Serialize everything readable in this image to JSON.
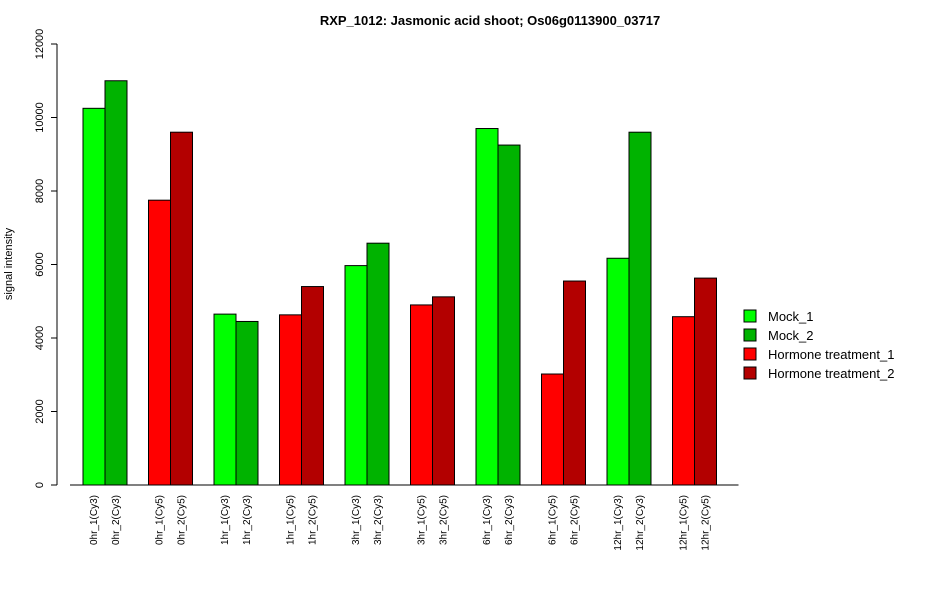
{
  "chart_data": {
    "type": "bar",
    "title": "RXP_1012: Jasmonic acid shoot; Os06g0113900_03717",
    "xlabel": "",
    "ylabel": "signal intensity",
    "ylim": [
      0,
      12000
    ],
    "yticks": [
      0,
      2000,
      4000,
      6000,
      8000,
      10000,
      12000
    ],
    "grid": false,
    "legend_position": "right",
    "legend": [
      {
        "name": "Mock_1",
        "color": "#00ff00"
      },
      {
        "name": "Mock_2",
        "color": "#00b300"
      },
      {
        "name": "Hormone treatment_1",
        "color": "#ff0000"
      },
      {
        "name": "Hormone treatment_2",
        "color": "#b30000"
      }
    ],
    "bars": [
      {
        "label": "0hr_1(Cy3)",
        "value": 10250,
        "color": "#00ff00"
      },
      {
        "label": "0hr_2(Cy3)",
        "value": 11000,
        "color": "#00b300"
      },
      {
        "label": "0hr_1(Cy5)",
        "value": 7750,
        "color": "#ff0000"
      },
      {
        "label": "0hr_2(Cy5)",
        "value": 9600,
        "color": "#b30000"
      },
      {
        "label": "1hr_1(Cy3)",
        "value": 4650,
        "color": "#00ff00"
      },
      {
        "label": "1hr_2(Cy3)",
        "value": 4450,
        "color": "#00b300"
      },
      {
        "label": "1hr_1(Cy5)",
        "value": 4630,
        "color": "#ff0000"
      },
      {
        "label": "1hr_2(Cy5)",
        "value": 5400,
        "color": "#b30000"
      },
      {
        "label": "3hr_1(Cy3)",
        "value": 5970,
        "color": "#00ff00"
      },
      {
        "label": "3hr_2(Cy3)",
        "value": 6580,
        "color": "#00b300"
      },
      {
        "label": "3hr_1(Cy5)",
        "value": 4900,
        "color": "#ff0000"
      },
      {
        "label": "3hr_2(Cy5)",
        "value": 5120,
        "color": "#b30000"
      },
      {
        "label": "6hr_1(Cy3)",
        "value": 9700,
        "color": "#00ff00"
      },
      {
        "label": "6hr_2(Cy3)",
        "value": 9250,
        "color": "#00b300"
      },
      {
        "label": "6hr_1(Cy5)",
        "value": 3020,
        "color": "#ff0000"
      },
      {
        "label": "6hr_2(Cy5)",
        "value": 5550,
        "color": "#b30000"
      },
      {
        "label": "12hr_1(Cy3)",
        "value": 6170,
        "color": "#00ff00"
      },
      {
        "label": "12hr_2(Cy3)",
        "value": 9600,
        "color": "#00b300"
      },
      {
        "label": "12hr_1(Cy5)",
        "value": 4580,
        "color": "#ff0000"
      },
      {
        "label": "12hr_2(Cy5)",
        "value": 5630,
        "color": "#b30000"
      }
    ]
  }
}
